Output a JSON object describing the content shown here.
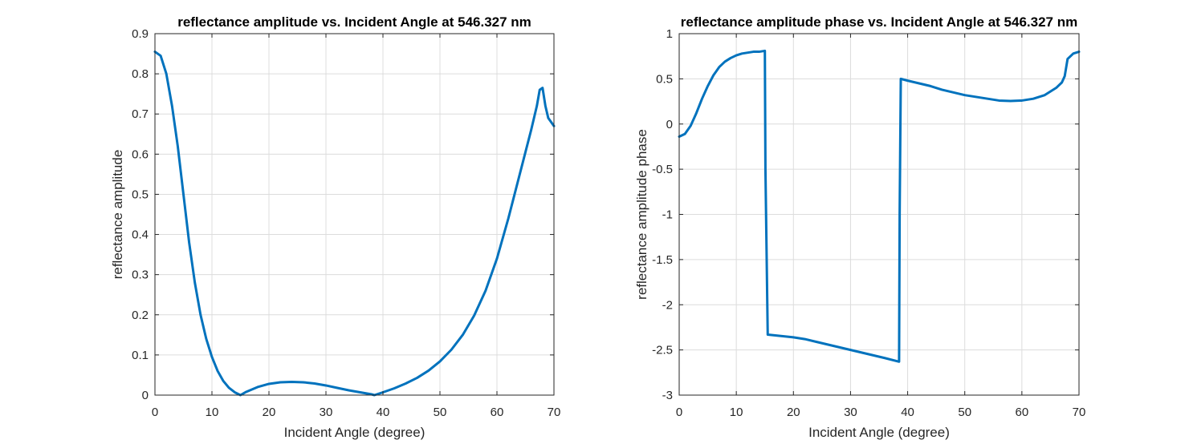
{
  "chart_data": [
    {
      "type": "line",
      "title": "reflectance amplitude vs. Incident Angle at 546.327 nm",
      "xlabel": "Incident Angle (degree)",
      "ylabel": "reflectance amplitude",
      "xlim": [
        0,
        70
      ],
      "ylim": [
        0,
        0.9
      ],
      "xticks": [
        "0",
        "10",
        "20",
        "30",
        "40",
        "50",
        "60",
        "70"
      ],
      "yticks": [
        "0",
        "0.1",
        "0.2",
        "0.3",
        "0.4",
        "0.5",
        "0.6",
        "0.7",
        "0.8",
        "0.9"
      ],
      "grid": true,
      "color": "#0072BD",
      "series": [
        {
          "x": [
            0,
            1,
            2,
            3,
            4,
            5,
            6,
            7,
            8,
            9,
            10,
            11,
            12,
            13,
            14,
            15,
            16,
            18,
            20,
            22,
            24,
            26,
            28,
            30,
            32,
            34,
            36,
            38,
            38.5,
            40,
            42,
            44,
            46,
            48,
            50,
            52,
            54,
            56,
            58,
            60,
            62,
            64,
            66,
            67,
            67.5,
            68,
            68.5,
            69,
            70
          ],
          "y": [
            0.855,
            0.845,
            0.8,
            0.72,
            0.62,
            0.5,
            0.38,
            0.28,
            0.2,
            0.14,
            0.095,
            0.06,
            0.035,
            0.018,
            0.007,
            0.0,
            0.008,
            0.02,
            0.028,
            0.032,
            0.033,
            0.032,
            0.029,
            0.024,
            0.018,
            0.012,
            0.007,
            0.002,
            0.0,
            0.007,
            0.017,
            0.029,
            0.043,
            0.061,
            0.084,
            0.113,
            0.15,
            0.198,
            0.26,
            0.34,
            0.44,
            0.55,
            0.66,
            0.72,
            0.76,
            0.765,
            0.72,
            0.69,
            0.67
          ]
        }
      ]
    },
    {
      "type": "line",
      "title": "reflectance amplitude phase vs. Incident Angle at 546.327 nm",
      "xlabel": "Incident Angle (degree)",
      "ylabel": "reflectance amplitude phase",
      "xlim": [
        0,
        70
      ],
      "ylim": [
        -3,
        1
      ],
      "xticks": [
        "0",
        "10",
        "20",
        "30",
        "40",
        "50",
        "60",
        "70"
      ],
      "yticks": [
        "-3",
        "-2.5",
        "-2",
        "-1.5",
        "-1",
        "-0.5",
        "0",
        "0.5",
        "1"
      ],
      "grid": true,
      "color": "#0072BD",
      "series": [
        {
          "x": [
            0,
            1,
            2,
            3,
            4,
            5,
            6,
            7,
            8,
            9,
            10,
            11,
            12,
            13,
            14,
            15,
            15.1,
            15.5,
            17,
            20,
            22,
            24,
            26,
            28,
            30,
            32,
            34,
            36,
            38.5,
            38.6,
            38.8,
            40,
            42,
            44,
            46,
            48,
            50,
            52,
            54,
            56,
            58,
            60,
            62,
            64,
            66,
            67,
            67.5,
            68,
            69,
            70
          ],
          "y": [
            -0.14,
            -0.11,
            -0.02,
            0.12,
            0.28,
            0.42,
            0.54,
            0.63,
            0.69,
            0.73,
            0.76,
            0.78,
            0.79,
            0.8,
            0.8,
            0.81,
            -0.5,
            -2.33,
            -2.34,
            -2.36,
            -2.38,
            -2.41,
            -2.44,
            -2.47,
            -2.5,
            -2.53,
            -2.56,
            -2.59,
            -2.63,
            -1.0,
            0.5,
            0.48,
            0.45,
            0.42,
            0.38,
            0.35,
            0.32,
            0.3,
            0.28,
            0.26,
            0.255,
            0.26,
            0.28,
            0.32,
            0.4,
            0.46,
            0.53,
            0.72,
            0.78,
            0.8
          ]
        }
      ]
    }
  ]
}
